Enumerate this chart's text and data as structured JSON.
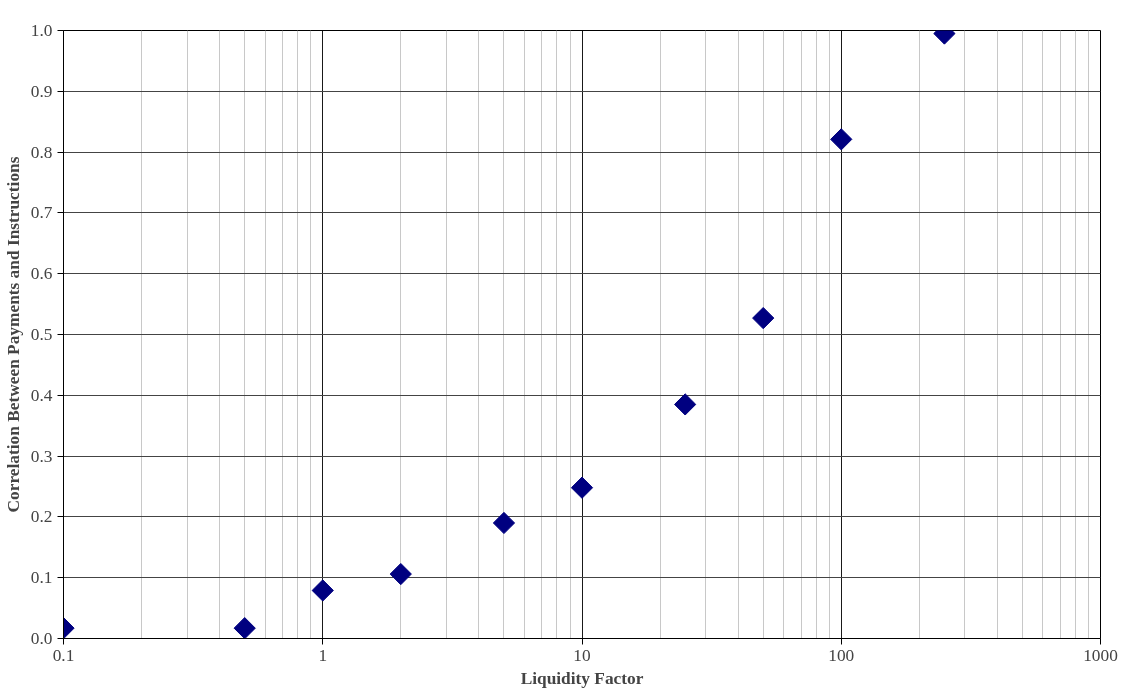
{
  "chart_data": {
    "type": "scatter",
    "xlabel": "Liquidity Factor",
    "ylabel": "Correlation Between Payments and Instructions",
    "x": [
      0.1,
      0.5,
      1,
      2,
      5,
      10,
      25,
      50,
      100,
      250
    ],
    "series": [
      {
        "color": "#000080",
        "values": [
          0.017,
          0.017,
          0.079,
          0.106,
          0.19,
          0.248,
          0.385,
          0.527,
          0.821,
          0.995
        ]
      }
    ],
    "log": "x",
    "marker": "diamond",
    "grid": true,
    "xlim": [
      0.1,
      1000
    ],
    "xticks": [
      0.1,
      1,
      10,
      100,
      1000
    ],
    "ylim": [
      0,
      1
    ],
    "yticks": [
      {
        "value": 0,
        "label": "0.0"
      },
      0.1,
      0.2,
      0.3,
      0.4,
      0.5,
      0.6,
      0.7,
      0.8,
      0.9,
      {
        "value": 1,
        "label": "1.0"
      }
    ]
  }
}
